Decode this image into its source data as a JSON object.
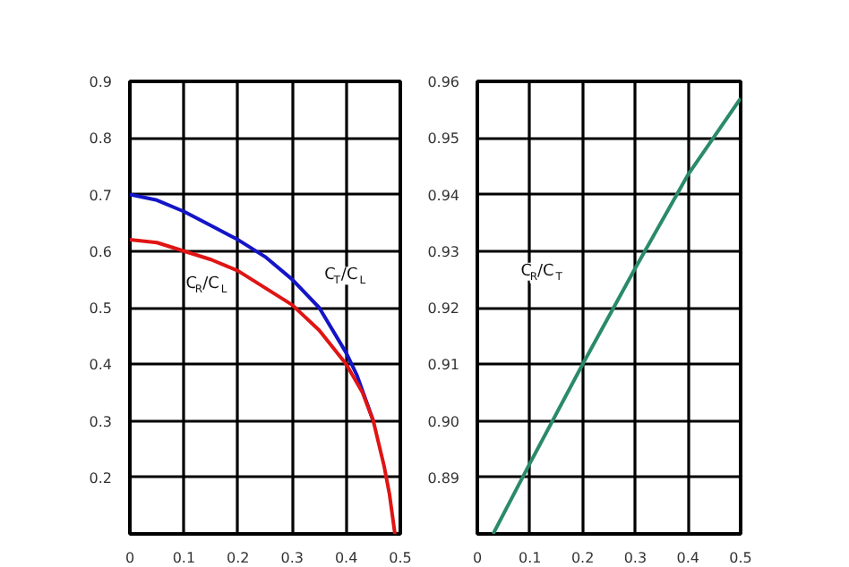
{
  "chart_data": [
    {
      "type": "line",
      "xlim": [
        0,
        0.5
      ],
      "ylim": [
        0.1,
        0.9
      ],
      "xticks": [
        0,
        0.1,
        0.2,
        0.3,
        0.4,
        0.5
      ],
      "yticks": [
        0.2,
        0.3,
        0.4,
        0.5,
        0.6,
        0.7,
        0.8,
        0.9
      ],
      "grid": true,
      "series": [
        {
          "name": "C$_{T}$/C$_{L}$",
          "color": "#1414c8",
          "x": [
            0,
            0.05,
            0.1,
            0.15,
            0.2,
            0.25,
            0.3,
            0.35,
            0.4,
            0.42,
            0.45
          ],
          "values": [
            0.7,
            0.69,
            0.67,
            0.645,
            0.62,
            0.59,
            0.55,
            0.5,
            0.42,
            0.38,
            0.3
          ]
        },
        {
          "name": "C$_{R}$/C$_{L}$",
          "color": "#e01414",
          "x": [
            0,
            0.05,
            0.1,
            0.15,
            0.2,
            0.25,
            0.3,
            0.35,
            0.4,
            0.43,
            0.45,
            0.47,
            0.48,
            0.49
          ],
          "values": [
            0.62,
            0.615,
            0.6,
            0.585,
            0.565,
            0.535,
            0.505,
            0.46,
            0.4,
            0.35,
            0.3,
            0.22,
            0.17,
            0.1
          ]
        }
      ]
    },
    {
      "type": "line",
      "xlim": [
        0,
        0.5
      ],
      "ylim": [
        0.88,
        0.96
      ],
      "xticks": [
        0,
        0.1,
        0.2,
        0.3,
        0.4,
        0.5
      ],
      "yticks": [
        0.89,
        {
          "value": 0.9,
          "label": "0.90"
        },
        0.91,
        0.92,
        0.93,
        0.94,
        0.95,
        0.96
      ],
      "grid": true,
      "series": [
        {
          "name": "C$_{R}$/C$_{T}$",
          "color": "#2a8a6a",
          "x": [
            0.03,
            0.1,
            0.2,
            0.3,
            0.4,
            0.5
          ],
          "values": [
            0.88,
            0.8925,
            0.91,
            0.927,
            0.9435,
            0.957
          ]
        }
      ]
    }
  ]
}
